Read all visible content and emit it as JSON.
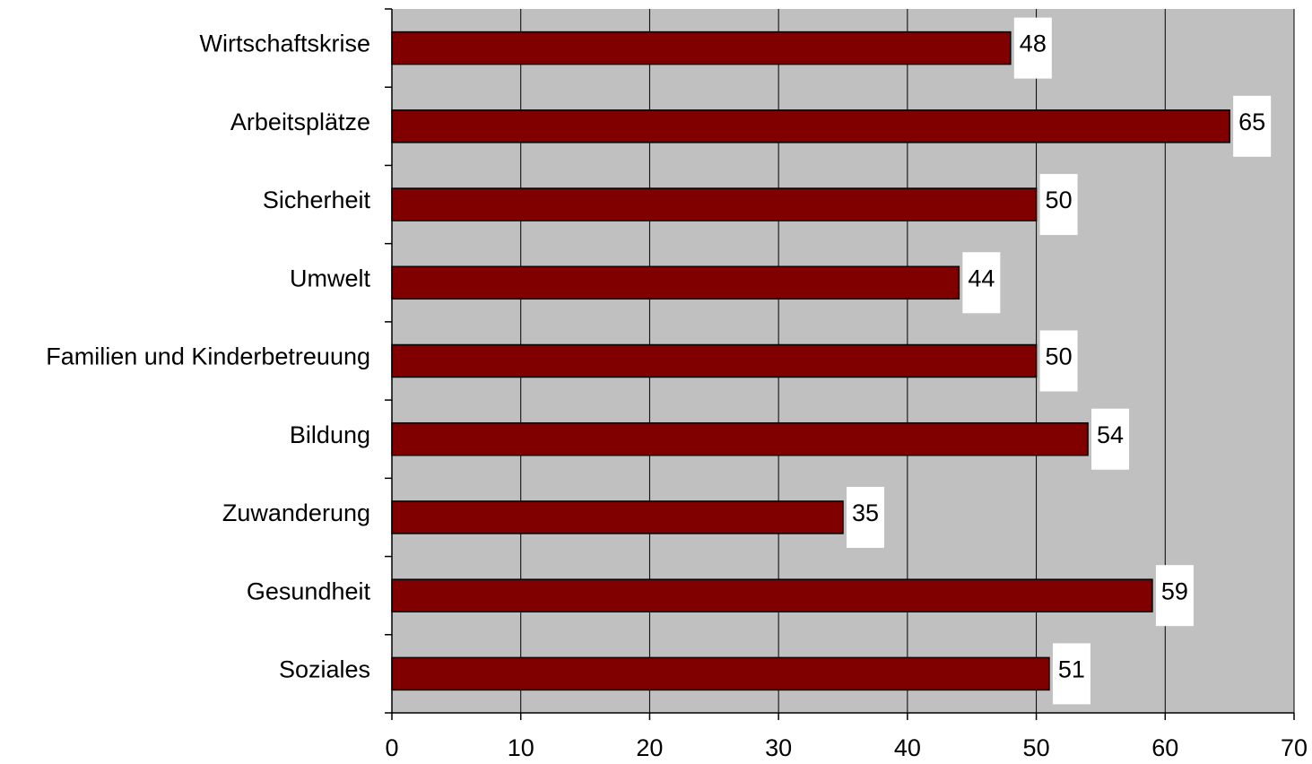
{
  "chart_data": {
    "type": "bar",
    "orientation": "horizontal",
    "categories": [
      "Wirtschaftskrise",
      "Arbeitsplätze",
      "Sicherheit",
      "Umwelt",
      "Familien und Kinderbetreuung",
      "Bildung",
      "Zuwanderung",
      "Gesundheit",
      "Soziales"
    ],
    "values": [
      48,
      65,
      50,
      44,
      50,
      54,
      35,
      59,
      51
    ],
    "xlim": [
      0,
      70
    ],
    "xticks": [
      0,
      10,
      20,
      30,
      40,
      50,
      60,
      70
    ],
    "grid": "vertical",
    "legend": "none",
    "colors": {
      "bar": "#800000",
      "plot_background": "#c0c0c0",
      "gridline": "#000000",
      "label_background": "#ffffff"
    }
  }
}
